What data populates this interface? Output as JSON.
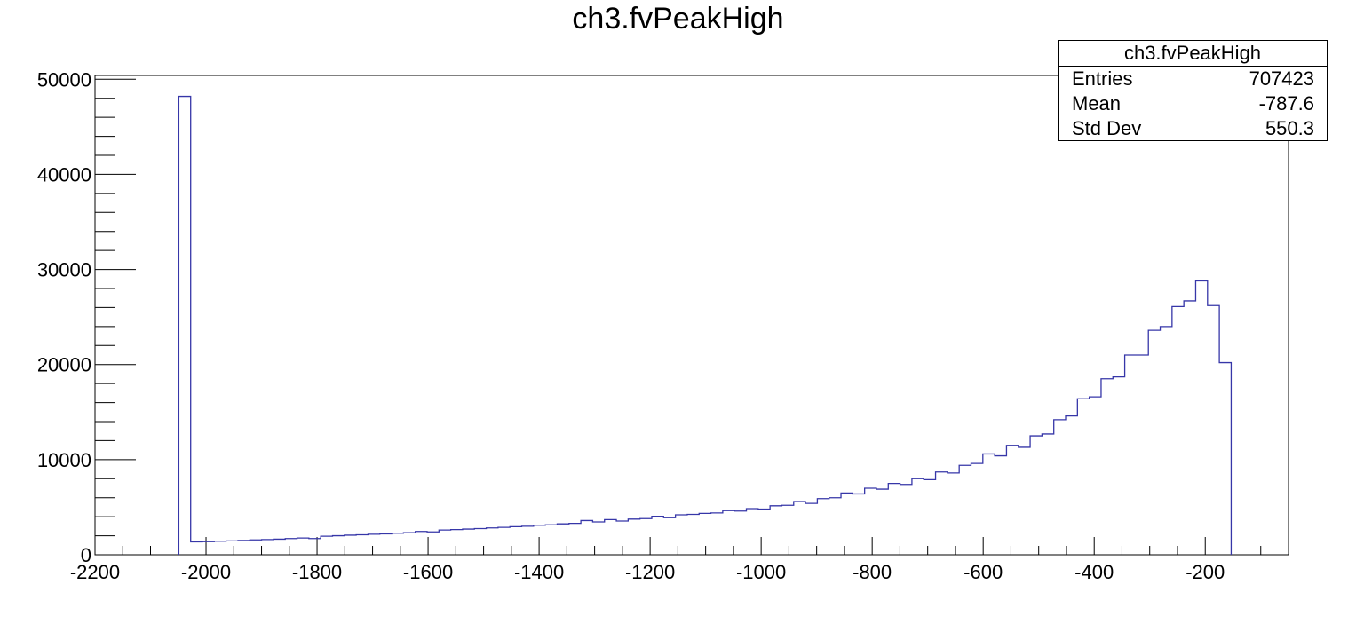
{
  "chart_data": {
    "type": "histogram",
    "title": "ch3.fvPeakHigh",
    "xlabel": "",
    "ylabel": "",
    "xlim": [
      -2200,
      -50
    ],
    "ylim": [
      0,
      50000
    ],
    "x_ticks": [
      -2200,
      -2000,
      -1800,
      -1600,
      -1400,
      -1200,
      -1000,
      -800,
      -600,
      -400,
      -200
    ],
    "y_ticks": [
      0,
      10000,
      20000,
      30000,
      40000,
      50000
    ],
    "bin_width": 21.3,
    "x_start": -2049,
    "values": [
      48200,
      1350,
      1380,
      1420,
      1460,
      1500,
      1560,
      1600,
      1640,
      1700,
      1760,
      1700,
      1950,
      2000,
      2060,
      2100,
      2160,
      2200,
      2260,
      2320,
      2450,
      2400,
      2600,
      2650,
      2700,
      2750,
      2820,
      2880,
      2950,
      3000,
      3100,
      3150,
      3250,
      3300,
      3600,
      3450,
      3700,
      3550,
      3750,
      3800,
      4050,
      3900,
      4200,
      4250,
      4350,
      4400,
      4650,
      4600,
      4850,
      4800,
      5150,
      5200,
      5600,
      5400,
      5900,
      6000,
      6500,
      6400,
      7000,
      6900,
      7500,
      7400,
      8000,
      7900,
      8700,
      8600,
      9400,
      9600,
      10600,
      10400,
      11500,
      11300,
      12500,
      12700,
      14200,
      14600,
      16400,
      16600,
      18500,
      18700,
      21000,
      21000,
      23600,
      24000,
      26100,
      26700,
      28800,
      26200,
      20200
    ]
  },
  "stats": {
    "title": "ch3.fvPeakHigh",
    "rows": [
      {
        "label": "Entries",
        "value": "707423"
      },
      {
        "label": "Mean",
        "value": "-787.6"
      },
      {
        "label": "Std Dev",
        "value": "550.3"
      }
    ]
  },
  "colors": {
    "line": "#3636a8",
    "axis": "#000000"
  }
}
